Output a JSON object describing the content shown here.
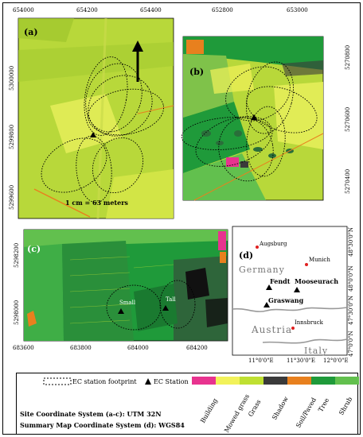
{
  "panels": {
    "a": {
      "label": "(a)",
      "xticks": [
        "654000",
        "654200",
        "654400"
      ],
      "yticks": [
        "5300000",
        "5299800",
        "5299600"
      ],
      "scale_text": "1 cm = 63 meters"
    },
    "b": {
      "label": "(b)",
      "xticks": [
        "652800",
        "653000"
      ],
      "yticks": [
        "5270800",
        "5270600",
        "5270400"
      ]
    },
    "c": {
      "label": "(c)",
      "xticks": [
        "683600",
        "683800",
        "684000",
        "684200"
      ],
      "yticks": [
        "5298200",
        "5298000"
      ],
      "site_small": "Small",
      "site_tall": "Tall"
    },
    "d": {
      "label": "(d)",
      "xticks": [
        "11°0'0\"E",
        "11°30'0\"E",
        "12°0'0\"E"
      ],
      "yticks": [
        "48°30'0\"N",
        "48°0'0\"N",
        "47°30'0\"N",
        "47°0'0\"N"
      ],
      "countries": {
        "germany": "Germany",
        "austria": "Austria",
        "italy": "Italy"
      },
      "cities": {
        "augsburg": "Augsburg",
        "munich": "Munich",
        "innsbruck": "Innsbruck"
      },
      "stations": {
        "fendt": "Fendt",
        "mooseurach": "Mooseurach",
        "graswang": "Graswang"
      }
    }
  },
  "legend": {
    "footprint": "EC station footprint",
    "station": "EC Station",
    "coord_site": "Site Coordinate System (a-c): UTM 32N",
    "coord_summary": "Summary Map Coordinate System (d): WGS84",
    "classes": [
      {
        "name": "Building",
        "color": "#e8338f"
      },
      {
        "name": "Mowed grass",
        "color": "#f2f25a"
      },
      {
        "name": "Grass",
        "color": "#bfe032"
      },
      {
        "name": "Shadow",
        "color": "#3a3a3a"
      },
      {
        "name": "Soil/Paved",
        "color": "#e8801e"
      },
      {
        "name": "Tree",
        "color": "#1f9a3a"
      },
      {
        "name": "Shrub",
        "color": "#62c04e"
      }
    ]
  }
}
